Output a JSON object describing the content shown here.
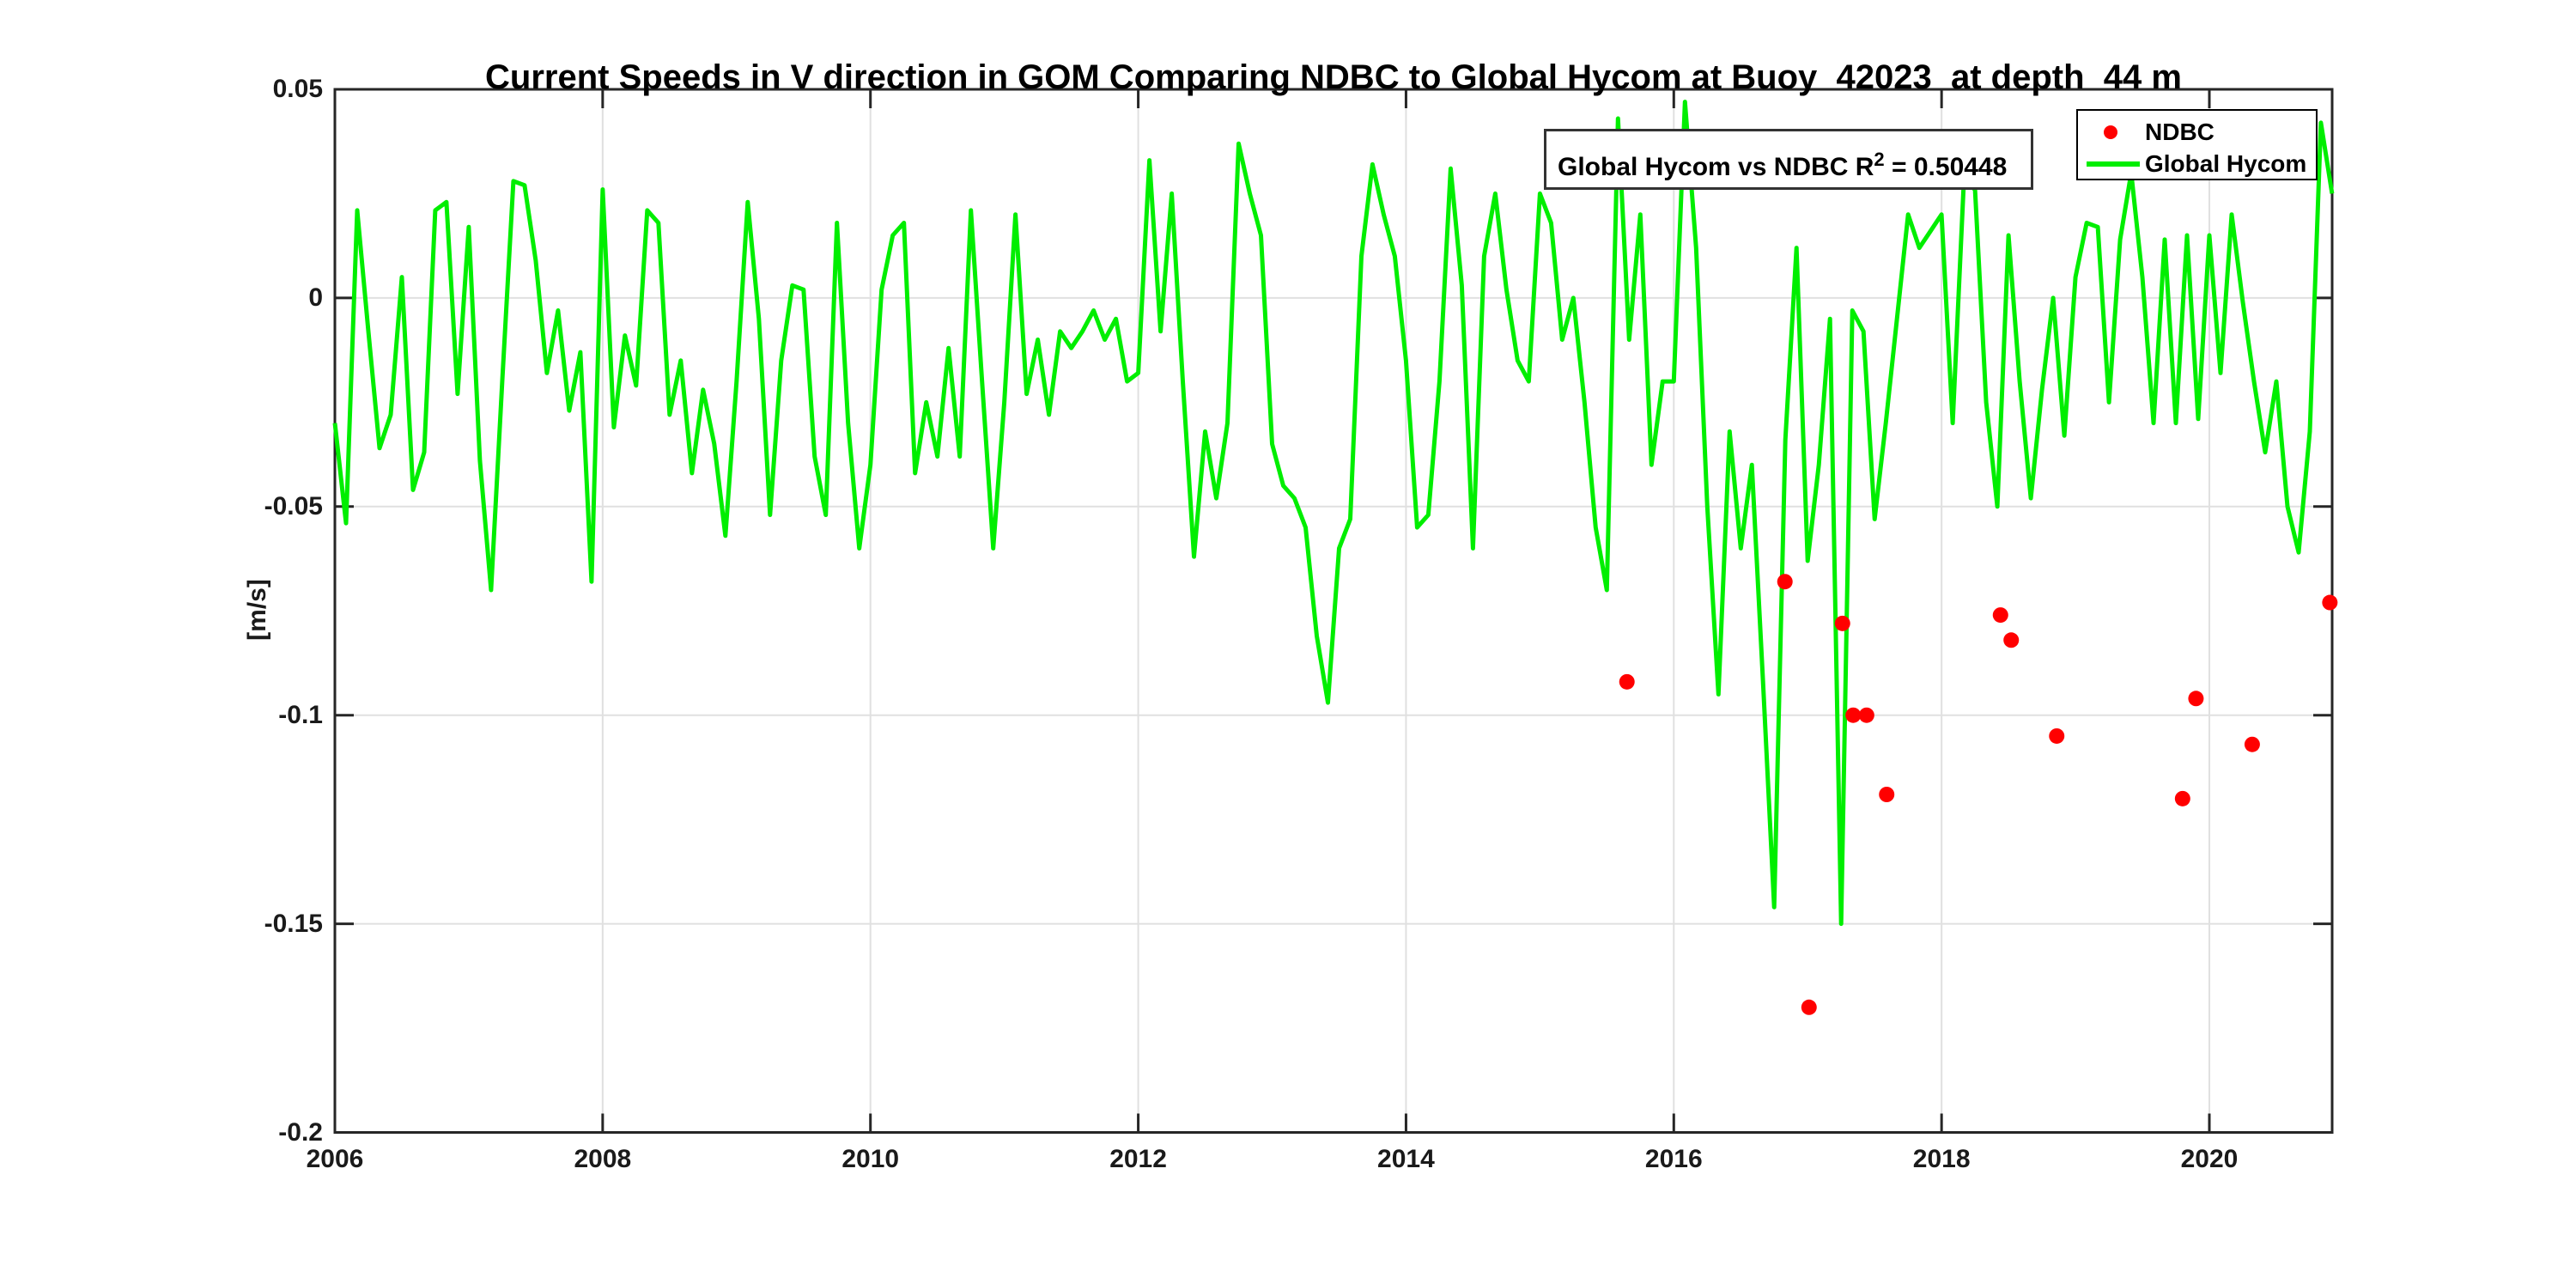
{
  "title": "Current Speeds in V direction in GOM Comparing NDBC to Global Hycom at Buoy  42023  at depth  44 m",
  "ylabel": "[m/s]",
  "annotation": {
    "prefix": "Global Hycom vs NDBC R",
    "sup": "2",
    "suffix": " = 0.50448",
    "full_text": "Global Hycom vs NDBC R2 = 0.50448"
  },
  "legend": {
    "items": [
      {
        "label": "NDBC",
        "marker": "dot",
        "color": "#ff0000"
      },
      {
        "label": "Global Hycom",
        "marker": "line",
        "color": "#00ee00"
      }
    ]
  },
  "colors": {
    "ndbc": "#ff0000",
    "hycom": "#00ee00",
    "grid": "#e0e0e0",
    "axis": "#262626",
    "background": "#ffffff"
  },
  "chart_data": {
    "type": "line",
    "title": "Current Speeds in V direction in GOM Comparing NDBC to Global Hycom at Buoy  42023  at depth  44 m",
    "xlabel": "",
    "ylabel": "[m/s]",
    "xlim": [
      2006,
      2020.917
    ],
    "ylim": [
      -0.2,
      0.05
    ],
    "grid": true,
    "legend_position": "top-right",
    "xticks": {
      "values": [
        2006,
        2008,
        2010,
        2012,
        2014,
        2016,
        2018,
        2020
      ],
      "labels": [
        "2006",
        "2008",
        "2010",
        "2012",
        "2014",
        "2016",
        "2018",
        "2020"
      ]
    },
    "yticks": {
      "values": [
        0.05,
        0,
        -0.05,
        -0.1,
        -0.15,
        -0.2
      ],
      "labels": [
        "0.05",
        "0",
        "-0.05",
        "-0.1",
        "-0.15",
        "-0.2"
      ]
    },
    "series": [
      {
        "name": "Global Hycom",
        "type": "line",
        "color": "#00ee00",
        "x_start": 2006,
        "x_step": 0.083333,
        "values": [
          -0.03,
          -0.054,
          0.021,
          -0.008,
          -0.036,
          -0.028,
          0.005,
          -0.046,
          -0.037,
          0.021,
          0.023,
          -0.023,
          0.017,
          -0.039,
          -0.07,
          -0.02,
          0.028,
          0.027,
          0.009,
          -0.018,
          -0.003,
          -0.027,
          -0.013,
          -0.068,
          0.026,
          -0.031,
          -0.009,
          -0.021,
          0.021,
          0.018,
          -0.028,
          -0.015,
          -0.042,
          -0.022,
          -0.035,
          -0.057,
          -0.02,
          0.023,
          -0.005,
          -0.052,
          -0.015,
          0.003,
          0.002,
          -0.038,
          -0.052,
          0.018,
          -0.03,
          -0.06,
          -0.04,
          0.002,
          0.015,
          0.018,
          -0.042,
          -0.025,
          -0.038,
          -0.012,
          -0.038,
          0.021,
          -0.02,
          -0.06,
          -0.025,
          0.02,
          -0.023,
          -0.01,
          -0.028,
          -0.008,
          -0.012,
          -0.008,
          -0.003,
          -0.01,
          -0.005,
          -0.02,
          -0.018,
          0.033,
          -0.008,
          0.025,
          -0.02,
          -0.062,
          -0.032,
          -0.048,
          -0.03,
          0.037,
          0.025,
          0.015,
          -0.035,
          -0.045,
          -0.048,
          -0.055,
          -0.081,
          -0.097,
          -0.06,
          -0.053,
          0.01,
          0.032,
          0.02,
          0.01,
          -0.015,
          -0.055,
          -0.052,
          -0.02,
          0.031,
          0.003,
          -0.06,
          0.01,
          0.025,
          0.002,
          -0.015,
          -0.02,
          0.025,
          0.018,
          -0.01,
          0.0,
          -0.025,
          -0.055,
          -0.07,
          0.043,
          -0.01,
          0.02,
          -0.04,
          -0.02,
          -0.02,
          0.047,
          0.012,
          -0.05,
          -0.095,
          -0.032,
          -0.06,
          -0.04,
          -0.092,
          -0.146,
          -0.034,
          0.012,
          -0.063,
          -0.04,
          -0.005,
          -0.15,
          -0.003,
          -0.008,
          -0.053,
          -0.03,
          -0.005,
          0.02,
          0.012,
          0.016,
          0.02,
          -0.03,
          0.028,
          0.026,
          -0.025,
          -0.05,
          0.015,
          -0.02,
          -0.048,
          -0.022,
          0.0,
          -0.033,
          0.005,
          0.018,
          0.017,
          -0.025,
          0.014,
          0.03,
          0.005,
          -0.03,
          0.014,
          -0.03,
          0.015,
          -0.029,
          0.015,
          -0.018,
          0.02,
          -0.001,
          -0.02,
          -0.037,
          -0.02,
          -0.05,
          -0.061,
          -0.032,
          0.042,
          0.025
        ]
      },
      {
        "name": "NDBC",
        "type": "scatter",
        "color": "#ff0000",
        "points": [
          [
            2015.65,
            -0.092
          ],
          [
            2016.83,
            -0.068
          ],
          [
            2017.01,
            -0.17
          ],
          [
            2017.26,
            -0.078
          ],
          [
            2017.34,
            -0.1
          ],
          [
            2017.44,
            -0.1
          ],
          [
            2017.59,
            -0.119
          ],
          [
            2018.44,
            -0.076
          ],
          [
            2018.52,
            -0.082
          ],
          [
            2018.86,
            -0.105
          ],
          [
            2019.8,
            -0.12
          ],
          [
            2019.9,
            -0.096
          ],
          [
            2020.32,
            -0.107
          ],
          [
            2020.9,
            -0.073
          ]
        ]
      }
    ]
  }
}
